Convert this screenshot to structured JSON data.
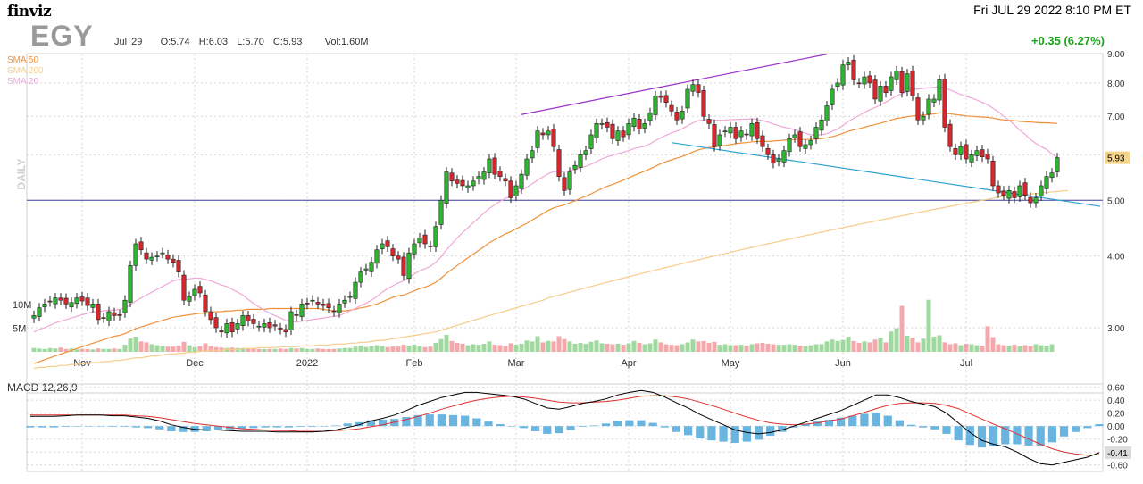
{
  "header": {
    "logo": "finviz",
    "datetime": "Fri JUL 29 2022 8:10 PM ET",
    "ticker": "EGY",
    "ohlc": "Jul 29    O:5.74  H:6.03  L:5.70  C:5.93     Vol:1.60M",
    "change": "+0.35 (6.27%)"
  },
  "legend": [
    {
      "label": "SMA 50",
      "color": "#f0913a"
    },
    {
      "label": "SMA 200",
      "color": "#f5cd8a"
    },
    {
      "label": "SMA 20",
      "color": "#f0a8d8"
    }
  ],
  "colors": {
    "up": "#2fb52f",
    "down": "#d9262c",
    "vol_up": "#9fd99f",
    "vol_down": "#f3a8ac",
    "macd_line": "#000000",
    "signal_line": "#e03030",
    "histogram": "#6ab4e0",
    "price_tag": "#f5d58a"
  },
  "chart_data": [
    {
      "type": "candlestick",
      "title": "EGY",
      "period_label": "DAILY",
      "y_scale": "log",
      "ylim": [
        2.5,
        9.0
      ],
      "y_ticks": [
        "9.00",
        "8.00",
        "7.00",
        "6.00",
        "5.00",
        "4.00",
        "3.00"
      ],
      "x_ticks": [
        "Nov",
        "Dec",
        "2022",
        "Feb",
        "Mar",
        "Apr",
        "May",
        "Jun",
        "Jul"
      ],
      "volume_ticks": [
        "10M",
        "5M"
      ],
      "last_price": "5.93",
      "last": {
        "date": "Jul 29",
        "open": 5.74,
        "high": 6.03,
        "low": 5.7,
        "close": 5.93,
        "volume": "1.60M"
      },
      "close": [
        3.15,
        3.25,
        3.3,
        3.33,
        3.38,
        3.35,
        3.3,
        3.32,
        3.38,
        3.34,
        3.28,
        3.3,
        3.1,
        3.12,
        3.2,
        3.15,
        3.15,
        3.35,
        3.85,
        4.2,
        4.1,
        3.95,
        3.98,
        4.0,
        4.05,
        3.95,
        3.9,
        3.75,
        3.35,
        3.4,
        3.5,
        3.45,
        3.2,
        3.1,
        3.0,
        2.95,
        3.05,
        2.95,
        3.05,
        3.15,
        3.08,
        3.05,
        3.02,
        3.05,
        3.0,
        3.02,
        2.98,
        2.95,
        3.2,
        3.15,
        3.3,
        3.3,
        3.35,
        3.3,
        3.28,
        3.25,
        3.2,
        3.3,
        3.35,
        3.4,
        3.6,
        3.75,
        3.8,
        3.9,
        4.1,
        4.2,
        4.15,
        4.0,
        3.95,
        3.7,
        4.05,
        4.2,
        4.3,
        4.2,
        4.15,
        4.5,
        5.0,
        5.6,
        5.4,
        5.35,
        5.3,
        5.3,
        5.4,
        5.5,
        5.6,
        5.9,
        5.55,
        5.5,
        5.4,
        5.05,
        5.3,
        5.55,
        5.9,
        6.1,
        6.6,
        6.5,
        6.6,
        6.2,
        5.5,
        5.2,
        5.6,
        5.75,
        6.0,
        6.1,
        6.5,
        6.8,
        6.8,
        6.7,
        6.4,
        6.6,
        6.45,
        6.8,
        6.95,
        6.65,
        6.8,
        7.1,
        7.6,
        7.55,
        7.4,
        7.15,
        6.9,
        7.15,
        7.8,
        7.95,
        7.7,
        7.0,
        6.8,
        6.2,
        6.5,
        6.6,
        6.7,
        6.4,
        6.6,
        6.5,
        6.8,
        6.4,
        6.2,
        6.0,
        5.8,
        5.9,
        6.1,
        6.4,
        6.5,
        6.2,
        6.25,
        6.35,
        6.7,
        6.9,
        7.3,
        7.8,
        8.0,
        8.6,
        8.7,
        8.1,
        8.0,
        8.2,
        8.0,
        7.5,
        7.9,
        7.7,
        8.2,
        8.4,
        7.7,
        8.3,
        7.6,
        6.9,
        7.0,
        7.5,
        7.5,
        8.1,
        6.7,
        6.2,
        6.0,
        6.2,
        5.9,
        6.0,
        6.1,
        5.95,
        5.9,
        5.3,
        5.15,
        5.1,
        5.2,
        5.05,
        5.3,
        5.1,
        4.95,
        5.05,
        5.3,
        5.5,
        5.58,
        5.93
      ],
      "volume_million": [
        0.8,
        0.7,
        0.6,
        0.8,
        0.7,
        0.9,
        0.6,
        0.7,
        0.5,
        0.6,
        0.6,
        0.5,
        0.7,
        0.6,
        0.6,
        0.7,
        0.6,
        1.5,
        2.8,
        3.2,
        2.2,
        2.0,
        1.6,
        1.4,
        1.2,
        1.1,
        1.1,
        1.3,
        2.1,
        1.4,
        1.0,
        1.2,
        1.8,
        1.2,
        1.0,
        0.9,
        0.8,
        0.9,
        0.8,
        0.8,
        0.7,
        0.7,
        0.6,
        0.6,
        0.6,
        0.6,
        0.7,
        0.6,
        0.8,
        0.7,
        0.8,
        0.6,
        0.6,
        0.7,
        0.6,
        0.6,
        0.6,
        0.7,
        0.8,
        0.8,
        1.1,
        1.3,
        1.0,
        1.2,
        1.4,
        1.2,
        1.0,
        1.1,
        1.1,
        1.5,
        1.3,
        1.5,
        1.2,
        1.0,
        1.1,
        1.9,
        2.7,
        3.6,
        2.3,
        1.9,
        1.7,
        1.4,
        1.6,
        1.5,
        1.7,
        2.2,
        1.5,
        1.4,
        1.2,
        1.8,
        1.5,
        1.7,
        2.4,
        2.2,
        3.3,
        2.0,
        2.3,
        2.2,
        3.3,
        2.7,
        2.2,
        1.7,
        1.9,
        1.7,
        2.1,
        2.4,
        1.8,
        1.7,
        1.6,
        1.7,
        1.5,
        1.8,
        2.3,
        1.9,
        1.6,
        1.8,
        2.6,
        2.0,
        1.6,
        1.5,
        1.4,
        1.6,
        2.0,
        2.6,
        2.2,
        2.3,
        1.9,
        2.1,
        1.5,
        1.6,
        1.4,
        1.4,
        1.5,
        1.3,
        1.6,
        1.8,
        1.9,
        1.7,
        1.6,
        1.5,
        1.5,
        1.6,
        1.5,
        1.3,
        1.2,
        1.4,
        1.6,
        1.6,
        2.2,
        2.6,
        2.3,
        2.5,
        3.2,
        2.3,
        1.9,
        2.2,
        2.0,
        2.6,
        3.0,
        2.0,
        4.3,
        5.0,
        9.7,
        3.4,
        3.0,
        2.0,
        2.8,
        11.0,
        3.2,
        3.5,
        2.0,
        1.6,
        1.8,
        1.4,
        1.7,
        1.6,
        1.4,
        1.3,
        5.4,
        3.1,
        1.6,
        1.4,
        1.3,
        1.5,
        1.2,
        1.4,
        1.2,
        1.6,
        1.4,
        1.3,
        1.6
      ],
      "sma20": [
        2.95,
        2.98,
        3.0,
        3.03,
        3.06,
        3.08,
        3.1,
        3.12,
        3.14,
        3.16,
        3.18,
        3.2,
        3.2,
        3.21,
        3.22,
        3.22,
        3.23,
        3.25,
        3.29,
        3.34,
        3.38,
        3.42,
        3.46,
        3.5,
        3.54,
        3.58,
        3.62,
        3.64,
        3.64,
        3.65,
        3.66,
        3.66,
        3.64,
        3.62,
        3.59,
        3.56,
        3.54,
        3.5,
        3.46,
        3.42,
        3.36,
        3.31,
        3.26,
        3.22,
        3.18,
        3.15,
        3.12,
        3.09,
        3.08,
        3.07,
        3.08,
        3.09,
        3.1,
        3.11,
        3.12,
        3.13,
        3.14,
        3.15,
        3.18,
        3.21,
        3.24,
        3.28,
        3.31,
        3.35,
        3.4,
        3.46,
        3.51,
        3.55,
        3.59,
        3.62,
        3.67,
        3.72,
        3.77,
        3.8,
        3.84,
        3.9,
        3.99,
        4.1,
        4.2,
        4.3,
        4.39,
        4.48,
        4.57,
        4.66,
        4.75,
        4.84,
        4.91,
        4.98,
        5.04,
        5.09,
        5.14,
        5.2,
        5.27,
        5.34,
        5.42,
        5.49,
        5.56,
        5.61,
        5.62,
        5.61,
        5.63,
        5.65,
        5.69,
        5.73,
        5.78,
        5.84,
        5.9,
        5.95,
        5.99,
        6.03,
        6.06,
        6.1,
        6.15,
        6.18,
        6.21,
        6.27,
        6.35,
        6.42,
        6.49,
        6.55,
        6.6,
        6.66,
        6.74,
        6.82,
        6.88,
        6.9,
        6.92,
        6.9,
        6.89,
        6.9,
        6.91,
        6.91,
        6.92,
        6.92,
        6.93,
        6.91,
        6.88,
        6.84,
        6.79,
        6.74,
        6.7,
        6.67,
        6.64,
        6.59,
        6.54,
        6.5,
        6.49,
        6.5,
        6.53,
        6.59,
        6.65,
        6.75,
        6.86,
        6.94,
        7.02,
        7.11,
        7.19,
        7.25,
        7.33,
        7.41,
        7.5,
        7.6,
        7.66,
        7.74,
        7.79,
        7.81,
        7.83,
        7.85,
        7.86,
        7.89,
        7.84,
        7.78,
        7.71,
        7.64,
        7.58,
        7.53,
        7.47,
        7.4,
        7.33,
        7.23,
        7.13,
        7.0,
        6.89,
        6.76,
        6.62,
        6.51,
        6.38,
        6.28,
        6.2,
        6.13,
        6.02,
        5.93
      ],
      "sma50": [
        2.6,
        2.62,
        2.64,
        2.66,
        2.68,
        2.7,
        2.72,
        2.74,
        2.76,
        2.78,
        2.8,
        2.82,
        2.84,
        2.86,
        2.88,
        2.9,
        2.91,
        2.93,
        2.96,
        2.99,
        3.01,
        3.03,
        3.05,
        3.07,
        3.09,
        3.11,
        3.13,
        3.14,
        3.15,
        3.16,
        3.17,
        3.18,
        3.18,
        3.19,
        3.2,
        3.2,
        3.21,
        3.21,
        3.22,
        3.22,
        3.23,
        3.23,
        3.23,
        3.23,
        3.24,
        3.24,
        3.24,
        3.24,
        3.24,
        3.24,
        3.24,
        3.24,
        3.24,
        3.24,
        3.23,
        3.22,
        3.21,
        3.21,
        3.21,
        3.22,
        3.23,
        3.25,
        3.26,
        3.28,
        3.3,
        3.33,
        3.36,
        3.39,
        3.41,
        3.42,
        3.45,
        3.48,
        3.51,
        3.53,
        3.56,
        3.6,
        3.66,
        3.73,
        3.79,
        3.85,
        3.91,
        3.97,
        4.03,
        4.09,
        4.15,
        4.22,
        4.27,
        4.32,
        4.37,
        4.41,
        4.46,
        4.51,
        4.56,
        4.62,
        4.68,
        4.74,
        4.8,
        4.85,
        4.88,
        4.91,
        4.95,
        4.99,
        5.04,
        5.08,
        5.13,
        5.19,
        5.24,
        5.29,
        5.33,
        5.37,
        5.42,
        5.47,
        5.52,
        5.57,
        5.62,
        5.67,
        5.73,
        5.79,
        5.84,
        5.88,
        5.92,
        5.96,
        6.01,
        6.07,
        6.12,
        6.15,
        6.18,
        6.19,
        6.21,
        6.23,
        6.25,
        6.27,
        6.29,
        6.3,
        6.32,
        6.33,
        6.33,
        6.33,
        6.34,
        6.35,
        6.36,
        6.37,
        6.38,
        6.38,
        6.38,
        6.38,
        6.39,
        6.4,
        6.42,
        6.45,
        6.49,
        6.54,
        6.59,
        6.63,
        6.66,
        6.7,
        6.74,
        6.77,
        6.81,
        6.85,
        6.9,
        6.94,
        6.96,
        6.99,
        7.01,
        7.02,
        7.03,
        7.05,
        7.07,
        7.1,
        7.09,
        7.07,
        7.05,
        7.03,
        7.01,
        7.0,
        6.99,
        6.98,
        6.97,
        6.95,
        6.92,
        6.9,
        6.89,
        6.88,
        6.86,
        6.85,
        6.84,
        6.83,
        6.82,
        6.82,
        6.81,
        6.8
      ],
      "sma200": [
        2.55,
        2.56,
        2.56,
        2.57,
        2.57,
        2.58,
        2.58,
        2.59,
        2.59,
        2.6,
        2.6,
        2.61,
        2.61,
        2.62,
        2.62,
        2.63,
        2.63,
        2.64,
        2.65,
        2.66,
        2.66,
        2.67,
        2.68,
        2.68,
        2.69,
        2.7,
        2.7,
        2.71,
        2.71,
        2.72,
        2.72,
        2.73,
        2.73,
        2.74,
        2.74,
        2.74,
        2.75,
        2.75,
        2.75,
        2.76,
        2.76,
        2.76,
        2.77,
        2.77,
        2.77,
        2.77,
        2.78,
        2.78,
        2.78,
        2.78,
        2.79,
        2.79,
        2.79,
        2.8,
        2.8,
        2.8,
        2.81,
        2.81,
        2.81,
        2.82,
        2.82,
        2.83,
        2.83,
        2.84,
        2.85,
        2.85,
        2.86,
        2.87,
        2.88,
        2.89,
        2.9,
        2.91,
        2.92,
        2.93,
        2.94,
        2.95,
        2.97,
        2.99,
        3.01,
        3.03,
        3.05,
        3.07,
        3.09,
        3.11,
        3.13,
        3.15,
        3.17,
        3.19,
        3.21,
        3.23,
        3.25,
        3.27,
        3.29,
        3.31,
        3.33,
        3.35,
        3.38,
        3.4,
        3.42,
        3.44,
        3.46,
        3.48,
        3.5,
        3.52,
        3.54,
        3.56,
        3.58,
        3.6,
        3.62,
        3.64,
        3.66,
        3.68,
        3.7,
        3.72,
        3.74,
        3.76,
        3.78,
        3.8,
        3.82,
        3.84,
        3.86,
        3.88,
        3.9,
        3.92,
        3.94,
        3.96,
        3.98,
        4.0,
        4.02,
        4.04,
        4.06,
        4.08,
        4.1,
        4.12,
        4.14,
        4.16,
        4.18,
        4.2,
        4.22,
        4.24,
        4.26,
        4.28,
        4.3,
        4.32,
        4.34,
        4.36,
        4.38,
        4.4,
        4.42,
        4.44,
        4.46,
        4.48,
        4.5,
        4.52,
        4.54,
        4.56,
        4.58,
        4.6,
        4.62,
        4.64,
        4.66,
        4.68,
        4.7,
        4.72,
        4.74,
        4.76,
        4.78,
        4.8,
        4.82,
        4.84,
        4.86,
        4.88,
        4.9,
        4.92,
        4.94,
        4.96,
        4.98,
        5.0,
        5.02,
        5.04,
        5.06,
        5.08,
        5.09,
        5.1,
        5.11,
        5.12,
        5.13,
        5.14,
        5.15,
        5.16,
        5.17,
        5.18,
        5.19,
        5.2
      ],
      "horizontal_line": 5.0,
      "trendlines": [
        {
          "from": [
            91,
            7.05
          ],
          "to": [
            148,
            8.98
          ],
          "color": "#9b30c8"
        },
        {
          "from": [
            119,
            6.3
          ],
          "to": [
            199,
            4.88
          ],
          "color": "#2aa0d0"
        }
      ]
    },
    {
      "type": "line",
      "title": "MACD 12,26,9",
      "ylim": [
        -0.7,
        0.65
      ],
      "y_ticks": [
        "0.60",
        "0.40",
        "0.20",
        "0.00",
        "-0.20",
        "-0.40",
        "-0.60"
      ],
      "last_value": "-0.41",
      "macd": [
        0.15,
        0.15,
        0.15,
        0.16,
        0.17,
        0.17,
        0.17,
        0.16,
        0.16,
        0.14,
        0.12,
        0.08,
        0.02,
        -0.02,
        -0.05,
        -0.06,
        -0.06,
        -0.07,
        -0.08,
        -0.08,
        -0.08,
        -0.09,
        -0.09,
        -0.09,
        -0.09,
        -0.08,
        -0.06,
        -0.02,
        0.02,
        0.08,
        0.12,
        0.17,
        0.24,
        0.32,
        0.38,
        0.44,
        0.48,
        0.52,
        0.52,
        0.5,
        0.48,
        0.46,
        0.42,
        0.35,
        0.28,
        0.26,
        0.3,
        0.35,
        0.38,
        0.42,
        0.48,
        0.52,
        0.55,
        0.52,
        0.45,
        0.36,
        0.28,
        0.18,
        0.1,
        0.02,
        -0.06,
        -0.1,
        -0.12,
        -0.1,
        -0.06,
        0.0,
        0.06,
        0.12,
        0.18,
        0.24,
        0.32,
        0.4,
        0.48,
        0.48,
        0.44,
        0.38,
        0.34,
        0.3,
        0.2,
        0.05,
        -0.1,
        -0.22,
        -0.28,
        -0.32,
        -0.4,
        -0.5,
        -0.58,
        -0.6,
        -0.56,
        -0.52,
        -0.48,
        -0.41
      ],
      "signal": [
        0.17,
        0.17,
        0.17,
        0.17,
        0.17,
        0.17,
        0.17,
        0.17,
        0.17,
        0.16,
        0.15,
        0.13,
        0.1,
        0.07,
        0.04,
        0.02,
        0.0,
        -0.02,
        -0.04,
        -0.05,
        -0.06,
        -0.07,
        -0.07,
        -0.08,
        -0.08,
        -0.08,
        -0.07,
        -0.06,
        -0.04,
        -0.01,
        0.02,
        0.06,
        0.1,
        0.15,
        0.2,
        0.26,
        0.31,
        0.36,
        0.4,
        0.43,
        0.45,
        0.46,
        0.45,
        0.43,
        0.4,
        0.37,
        0.36,
        0.36,
        0.37,
        0.38,
        0.4,
        0.43,
        0.46,
        0.47,
        0.47,
        0.45,
        0.42,
        0.37,
        0.32,
        0.26,
        0.2,
        0.14,
        0.09,
        0.05,
        0.03,
        0.02,
        0.03,
        0.05,
        0.08,
        0.11,
        0.16,
        0.21,
        0.27,
        0.32,
        0.35,
        0.36,
        0.36,
        0.35,
        0.32,
        0.27,
        0.19,
        0.11,
        0.03,
        -0.04,
        -0.12,
        -0.2,
        -0.28,
        -0.35,
        -0.4,
        -0.43,
        -0.45,
        -0.44
      ],
      "histogram": [
        -0.02,
        -0.02,
        -0.02,
        -0.01,
        0.0,
        0.0,
        0.0,
        -0.01,
        -0.01,
        -0.02,
        -0.03,
        -0.05,
        -0.08,
        -0.09,
        -0.09,
        -0.08,
        -0.06,
        -0.05,
        -0.04,
        -0.03,
        -0.02,
        -0.02,
        -0.02,
        -0.01,
        -0.01,
        0.0,
        0.01,
        0.04,
        0.06,
        0.09,
        0.1,
        0.11,
        0.14,
        0.17,
        0.18,
        0.18,
        0.17,
        0.16,
        0.12,
        0.07,
        0.03,
        0.0,
        -0.03,
        -0.08,
        -0.12,
        -0.11,
        -0.06,
        -0.01,
        0.01,
        0.04,
        0.08,
        0.09,
        0.09,
        0.05,
        -0.02,
        -0.09,
        -0.14,
        -0.19,
        -0.22,
        -0.24,
        -0.26,
        -0.24,
        -0.21,
        -0.15,
        -0.09,
        -0.02,
        0.03,
        0.07,
        0.1,
        0.13,
        0.16,
        0.19,
        0.21,
        0.16,
        0.09,
        0.02,
        -0.02,
        -0.05,
        -0.12,
        -0.22,
        -0.29,
        -0.33,
        -0.31,
        -0.28,
        -0.28,
        -0.3,
        -0.3,
        -0.25,
        -0.16,
        -0.09,
        -0.03,
        0.03
      ]
    }
  ]
}
